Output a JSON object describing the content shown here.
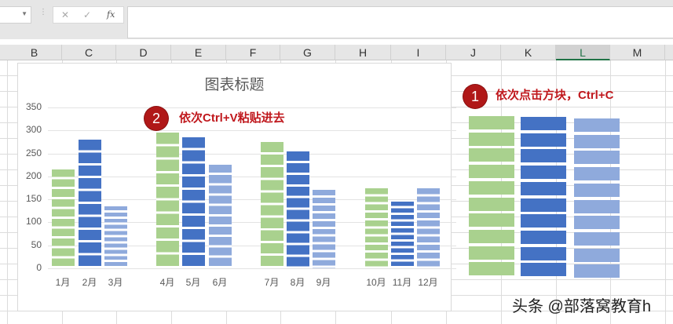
{
  "formula_bar": {
    "cancel_icon": "✕",
    "enter_icon": "✓",
    "fx_label": "fx",
    "value": ""
  },
  "columns": [
    "B",
    "C",
    "D",
    "E",
    "F",
    "G",
    "H",
    "I",
    "J",
    "K",
    "L",
    "M"
  ],
  "selected_column": "L",
  "colors": {
    "green": "#a9d18e",
    "blue": "#4472c4",
    "light_blue": "#8faadc",
    "annotation": "#c0181d"
  },
  "chart_data": {
    "type": "bar",
    "title": "图表标题",
    "categories": [
      "1月",
      "2月",
      "3月",
      "4月",
      "5月",
      "6月",
      "7月",
      "8月",
      "9月",
      "10月",
      "11月",
      "12月"
    ],
    "values": [
      215,
      280,
      135,
      295,
      285,
      225,
      275,
      255,
      170,
      175,
      145,
      175
    ],
    "ylim": [
      0,
      350
    ],
    "yticks": [
      "0",
      "50",
      "100",
      "150",
      "200",
      "250",
      "300",
      "350"
    ],
    "grid": true,
    "fill": "stacked picture blocks",
    "bar_colors": [
      "green",
      "blue",
      "light_blue",
      "green",
      "blue",
      "light_blue",
      "green",
      "blue",
      "light_blue",
      "green",
      "blue",
      "light_blue"
    ]
  },
  "annotations": [
    {
      "number": "1",
      "text": "依次点击方块，Ctrl+C"
    },
    {
      "number": "2",
      "text": "依次Ctrl+V粘贴进去"
    }
  ],
  "watermark": "头条 @部落窝教育h"
}
